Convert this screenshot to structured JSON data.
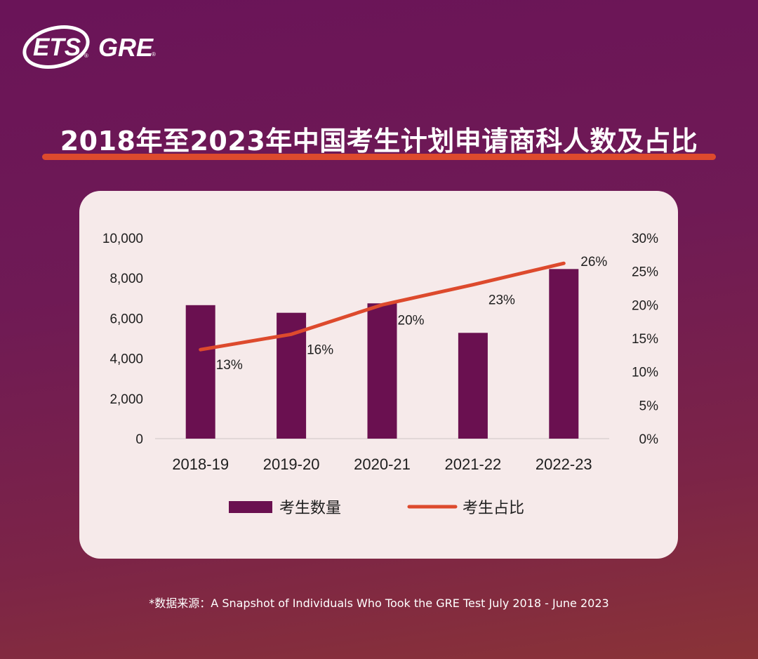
{
  "brand": {
    "ets": "ETS",
    "gre": "GRE",
    "registered": "®"
  },
  "title": "2018年至2023年中国考生计划申请商科人数及占比",
  "footnote": "*数据来源：A Snapshot of Individuals Who Took the GRE Test July 2018 - June 2023",
  "colors": {
    "bar": "#6a1050",
    "line": "#dd4a2d",
    "card": "#f6eaea",
    "underline": "#dd4a2d"
  },
  "chart_data": {
    "type": "bar+line",
    "categories": [
      "2018-19",
      "2019-20",
      "2020-21",
      "2021-22",
      "2022-23"
    ],
    "series": [
      {
        "name": "考生数量",
        "type": "bar",
        "axis": "left",
        "values": [
          6650,
          6270,
          6740,
          5270,
          8450
        ]
      },
      {
        "name": "考生占比",
        "type": "line",
        "axis": "right",
        "values": [
          13.3,
          15.6,
          20.0,
          23.0,
          26.2
        ],
        "labels": [
          "13%",
          "16%",
          "20%",
          "23%",
          "26%"
        ]
      }
    ],
    "y_left": {
      "min": 0,
      "max": 10000,
      "ticks": [
        "0",
        "2,000",
        "4,000",
        "6,000",
        "8,000",
        "10,000"
      ]
    },
    "y_right": {
      "min": 0,
      "max": 30,
      "ticks": [
        "0%",
        "5%",
        "10%",
        "15%",
        "20%",
        "25%",
        "30%"
      ]
    },
    "grid": false,
    "legend_position": "bottom"
  }
}
